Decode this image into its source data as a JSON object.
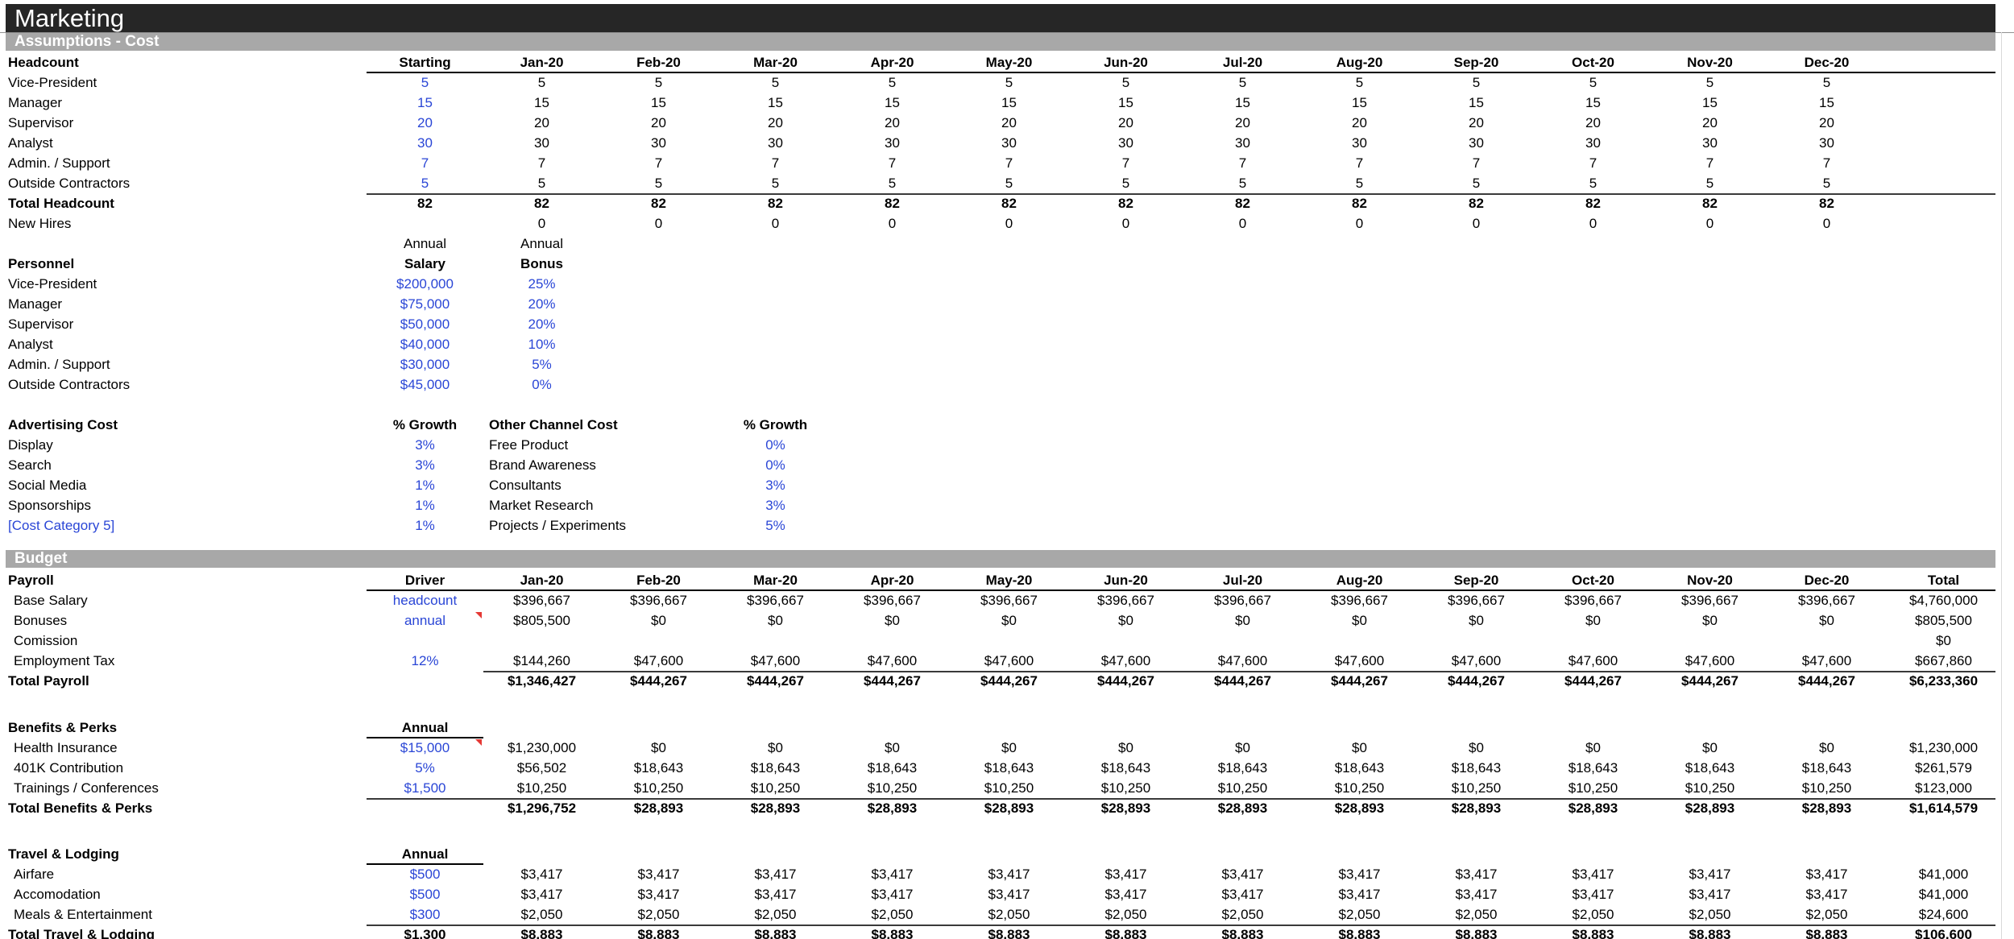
{
  "title": "Marketing",
  "sections": {
    "assumptions": "Assumptions - Cost",
    "budget": "Budget"
  },
  "colors": {
    "input_blue": "#2a46d6",
    "bar_black": "#262626",
    "bar_gray": "#a8a8a8",
    "note_red": "#e53935"
  },
  "tables": {
    "headcount": {
      "grid": "std",
      "rows": [
        {
          "label": "Headcount",
          "bold_label": true,
          "bold": true,
          "start": 1,
          "cells": [
            "Starting",
            "Jan-20",
            "Feb-20",
            "Mar-20",
            "Apr-20",
            "May-20",
            "Jun-20",
            "Jul-20",
            "Aug-20",
            "Sep-20",
            "Oct-20",
            "Nov-20",
            "Dec-20"
          ],
          "rules": [
            {
              "from": 1,
              "to": 14,
              "type": "thin"
            }
          ]
        },
        {
          "label": "Vice-President",
          "start": 1,
          "cells": [
            "5",
            "5",
            "5",
            "5",
            "5",
            "5",
            "5",
            "5",
            "5",
            "5",
            "5",
            "5",
            "5"
          ],
          "blue": [
            1
          ]
        },
        {
          "label": "Manager",
          "start": 1,
          "cells": [
            "15",
            "15",
            "15",
            "15",
            "15",
            "15",
            "15",
            "15",
            "15",
            "15",
            "15",
            "15",
            "15"
          ],
          "blue": [
            1
          ]
        },
        {
          "label": "Supervisor",
          "start": 1,
          "cells": [
            "20",
            "20",
            "20",
            "20",
            "20",
            "20",
            "20",
            "20",
            "20",
            "20",
            "20",
            "20",
            "20"
          ],
          "blue": [
            1
          ]
        },
        {
          "label": "Analyst",
          "start": 1,
          "cells": [
            "30",
            "30",
            "30",
            "30",
            "30",
            "30",
            "30",
            "30",
            "30",
            "30",
            "30",
            "30",
            "30"
          ],
          "blue": [
            1
          ]
        },
        {
          "label": "Admin. / Support",
          "start": 1,
          "cells": [
            "7",
            "7",
            "7",
            "7",
            "7",
            "7",
            "7",
            "7",
            "7",
            "7",
            "7",
            "7",
            "7"
          ],
          "blue": [
            1
          ]
        },
        {
          "label": "Outside Contractors",
          "start": 1,
          "cells": [
            "5",
            "5",
            "5",
            "5",
            "5",
            "5",
            "5",
            "5",
            "5",
            "5",
            "5",
            "5",
            "5"
          ],
          "blue": [
            1
          ],
          "rules": [
            {
              "from": 1,
              "to": 14,
              "type": "thick"
            }
          ]
        },
        {
          "label": "Total Headcount",
          "bold_label": true,
          "bold": true,
          "start": 1,
          "cells": [
            "82",
            "82",
            "82",
            "82",
            "82",
            "82",
            "82",
            "82",
            "82",
            "82",
            "82",
            "82",
            "82"
          ]
        },
        {
          "label": "New Hires",
          "start": 2,
          "cells": [
            "0",
            "0",
            "0",
            "0",
            "0",
            "0",
            "0",
            "0",
            "0",
            "0",
            "0",
            "0"
          ]
        }
      ]
    },
    "personnel": {
      "grid": "std",
      "rows": [
        {
          "label": "",
          "start": 1,
          "cells": [
            "Annual",
            "Annual"
          ]
        },
        {
          "label": "Personnel",
          "bold_label": true,
          "bold": true,
          "start": 1,
          "cells": [
            "Salary",
            "Bonus"
          ]
        },
        {
          "label": "Vice-President",
          "start": 1,
          "cells": [
            "$200,000",
            "25%"
          ],
          "blue": [
            1,
            2
          ]
        },
        {
          "label": "Manager",
          "start": 1,
          "cells": [
            "$75,000",
            "20%"
          ],
          "blue": [
            1,
            2
          ]
        },
        {
          "label": "Supervisor",
          "start": 1,
          "cells": [
            "$50,000",
            "20%"
          ],
          "blue": [
            1,
            2
          ]
        },
        {
          "label": "Analyst",
          "start": 1,
          "cells": [
            "$40,000",
            "10%"
          ],
          "blue": [
            1,
            2
          ]
        },
        {
          "label": "Admin. / Support",
          "start": 1,
          "cells": [
            "$30,000",
            "5%"
          ],
          "blue": [
            1,
            2
          ]
        },
        {
          "label": "Outside Contractors",
          "start": 1,
          "cells": [
            "$45,000",
            "0%"
          ],
          "blue": [
            1,
            2
          ]
        }
      ]
    },
    "advertising": {
      "grid": "adv",
      "aligns": {
        "2": "left"
      },
      "rows": [
        {
          "label": "Advertising Cost",
          "bold_label": true,
          "bold": true,
          "start": 1,
          "cells": [
            "% Growth",
            "Other Channel Cost",
            "% Growth"
          ]
        },
        {
          "label": "Display",
          "start": 1,
          "cells": [
            "3%",
            "Free Product",
            "0%"
          ],
          "blue": [
            1,
            3
          ]
        },
        {
          "label": "Search",
          "start": 1,
          "cells": [
            "3%",
            "Brand Awareness",
            "0%"
          ],
          "blue": [
            1,
            3
          ]
        },
        {
          "label": "Social Media",
          "start": 1,
          "cells": [
            "1%",
            "Consultants",
            "3%"
          ],
          "blue": [
            1,
            3
          ]
        },
        {
          "label": "Sponsorships",
          "start": 1,
          "cells": [
            "1%",
            "Market Research",
            "3%"
          ],
          "blue": [
            1,
            3
          ]
        },
        {
          "label": "[Cost Category 5]",
          "label_blue": true,
          "start": 1,
          "cells": [
            "1%",
            "Projects / Experiments",
            "5%"
          ],
          "blue": [
            1,
            3
          ]
        }
      ]
    },
    "payroll": {
      "grid": "std",
      "rows": [
        {
          "label": "Payroll",
          "bold_label": true,
          "bold": true,
          "start": 1,
          "cells": [
            "Driver",
            "Jan-20",
            "Feb-20",
            "Mar-20",
            "Apr-20",
            "May-20",
            "Jun-20",
            "Jul-20",
            "Aug-20",
            "Sep-20",
            "Oct-20",
            "Nov-20",
            "Dec-20",
            "Total"
          ],
          "rules": [
            {
              "from": 1,
              "to": 14,
              "type": "thin"
            }
          ]
        },
        {
          "label": "Base Salary",
          "indent": true,
          "start": 1,
          "cells": [
            "headcount",
            "$396,667",
            "$396,667",
            "$396,667",
            "$396,667",
            "$396,667",
            "$396,667",
            "$396,667",
            "$396,667",
            "$396,667",
            "$396,667",
            "$396,667",
            "$396,667",
            "$4,760,000"
          ],
          "blue": [
            1
          ]
        },
        {
          "label": "Bonuses",
          "indent": true,
          "start": 1,
          "cells": [
            "annual",
            "$805,500",
            "$0",
            "$0",
            "$0",
            "$0",
            "$0",
            "$0",
            "$0",
            "$0",
            "$0",
            "$0",
            "$0",
            "$805,500"
          ],
          "blue": [
            1
          ],
          "tri": 1
        },
        {
          "label": "Comission",
          "indent": true,
          "start": 14,
          "cells": [
            "$0"
          ]
        },
        {
          "label": "Employment Tax",
          "indent": true,
          "start": 1,
          "cells": [
            "12%",
            "$144,260",
            "$47,600",
            "$47,600",
            "$47,600",
            "$47,600",
            "$47,600",
            "$47,600",
            "$47,600",
            "$47,600",
            "$47,600",
            "$47,600",
            "$47,600",
            "$667,860"
          ],
          "blue": [
            1
          ],
          "rules": [
            {
              "from": 2,
              "to": 14,
              "type": "thick"
            }
          ]
        },
        {
          "label": "Total Payroll",
          "bold_label": true,
          "bold": true,
          "start": 2,
          "cells": [
            "$1,346,427",
            "$444,267",
            "$444,267",
            "$444,267",
            "$444,267",
            "$444,267",
            "$444,267",
            "$444,267",
            "$444,267",
            "$444,267",
            "$444,267",
            "$444,267",
            "$6,233,360"
          ]
        }
      ]
    },
    "benefits": {
      "grid": "std",
      "rows": [
        {
          "label": "Benefits & Perks",
          "bold_label": true,
          "bold": true,
          "start": 1,
          "cells": [
            "Annual"
          ],
          "rules": [
            {
              "from": 1,
              "to": 1,
              "type": "thin"
            }
          ]
        },
        {
          "label": "Health Insurance",
          "indent": true,
          "start": 1,
          "cells": [
            "$15,000",
            "$1,230,000",
            "$0",
            "$0",
            "$0",
            "$0",
            "$0",
            "$0",
            "$0",
            "$0",
            "$0",
            "$0",
            "$0",
            "$1,230,000"
          ],
          "blue": [
            1
          ],
          "tri": 1
        },
        {
          "label": "401K Contribution",
          "indent": true,
          "start": 1,
          "cells": [
            "5%",
            "$56,502",
            "$18,643",
            "$18,643",
            "$18,643",
            "$18,643",
            "$18,643",
            "$18,643",
            "$18,643",
            "$18,643",
            "$18,643",
            "$18,643",
            "$18,643",
            "$261,579"
          ],
          "blue": [
            1
          ]
        },
        {
          "label": "Trainings / Conferences",
          "indent": true,
          "start": 1,
          "cells": [
            "$1,500",
            "$10,250",
            "$10,250",
            "$10,250",
            "$10,250",
            "$10,250",
            "$10,250",
            "$10,250",
            "$10,250",
            "$10,250",
            "$10,250",
            "$10,250",
            "$10,250",
            "$123,000"
          ],
          "blue": [
            1
          ],
          "rules": [
            {
              "from": 1,
              "to": 14,
              "type": "thick"
            }
          ]
        },
        {
          "label": "Total Benefits & Perks",
          "bold_label": true,
          "bold": true,
          "start": 2,
          "cells": [
            "$1,296,752",
            "$28,893",
            "$28,893",
            "$28,893",
            "$28,893",
            "$28,893",
            "$28,893",
            "$28,893",
            "$28,893",
            "$28,893",
            "$28,893",
            "$28,893",
            "$1,614,579"
          ]
        }
      ]
    },
    "travel": {
      "grid": "std",
      "rows": [
        {
          "label": "Travel & Lodging",
          "bold_label": true,
          "bold": true,
          "start": 1,
          "cells": [
            "Annual"
          ],
          "rules": [
            {
              "from": 1,
              "to": 1,
              "type": "thin"
            }
          ]
        },
        {
          "label": "Airfare",
          "indent": true,
          "start": 1,
          "cells": [
            "$500",
            "$3,417",
            "$3,417",
            "$3,417",
            "$3,417",
            "$3,417",
            "$3,417",
            "$3,417",
            "$3,417",
            "$3,417",
            "$3,417",
            "$3,417",
            "$3,417",
            "$41,000"
          ],
          "blue": [
            1
          ]
        },
        {
          "label": "Accomodation",
          "indent": true,
          "start": 1,
          "cells": [
            "$500",
            "$3,417",
            "$3,417",
            "$3,417",
            "$3,417",
            "$3,417",
            "$3,417",
            "$3,417",
            "$3,417",
            "$3,417",
            "$3,417",
            "$3,417",
            "$3,417",
            "$41,000"
          ],
          "blue": [
            1
          ]
        },
        {
          "label": "Meals & Entertainment",
          "indent": true,
          "start": 1,
          "cells": [
            "$300",
            "$2,050",
            "$2,050",
            "$2,050",
            "$2,050",
            "$2,050",
            "$2,050",
            "$2,050",
            "$2,050",
            "$2,050",
            "$2,050",
            "$2,050",
            "$2,050",
            "$24,600"
          ],
          "blue": [
            1
          ],
          "rules": [
            {
              "from": 1,
              "to": 14,
              "type": "thick"
            }
          ]
        },
        {
          "label": "Total Travel & Lodging",
          "bold_label": true,
          "bold": true,
          "start": 1,
          "cells": [
            "$1,300",
            "$8,883",
            "$8,883",
            "$8,883",
            "$8,883",
            "$8,883",
            "$8,883",
            "$8,883",
            "$8,883",
            "$8,883",
            "$8,883",
            "$8,883",
            "$8,883",
            "$106,600"
          ]
        }
      ]
    }
  }
}
